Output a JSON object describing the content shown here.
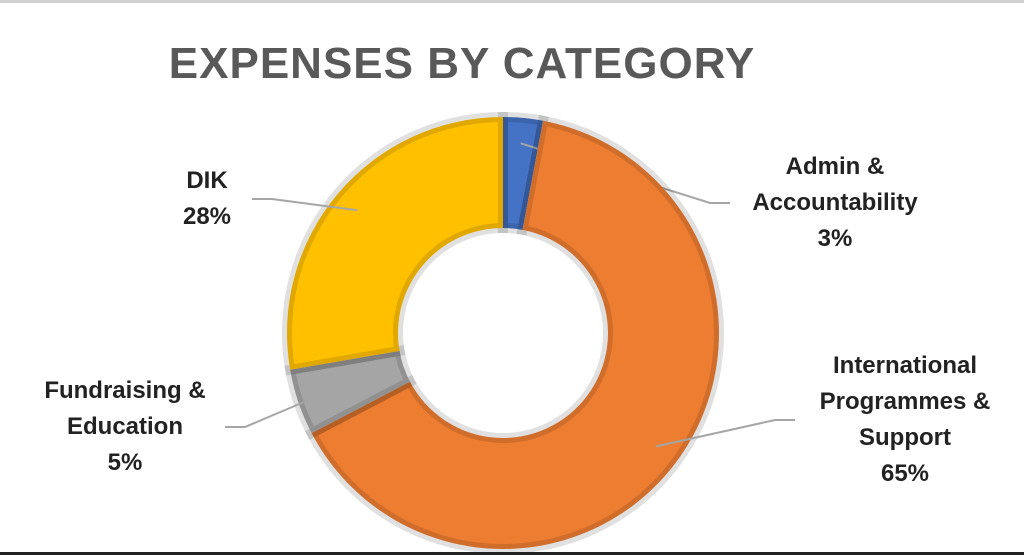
{
  "chart_data": {
    "type": "donut",
    "title": "EXPENSES BY CATEGORY",
    "categories": [
      "Admin & Accountability",
      "International Programmes & Support",
      "Fundraising & Education",
      "DIK"
    ],
    "values": [
      3,
      65,
      5,
      28
    ],
    "value_labels": [
      "3%",
      "65%",
      "5%",
      "28%"
    ],
    "colors": [
      "#4472c4",
      "#ed7d31",
      "#a5a5a5",
      "#ffc000"
    ]
  }
}
